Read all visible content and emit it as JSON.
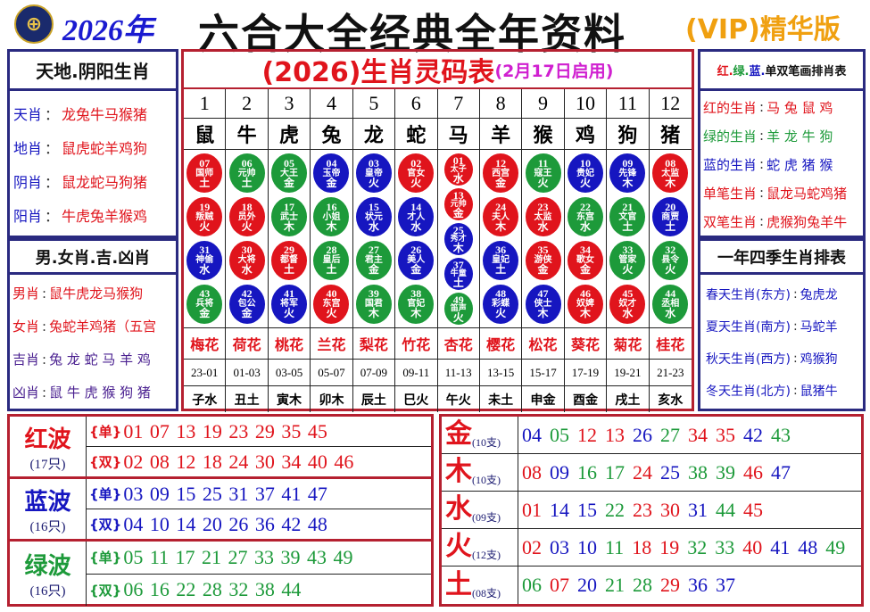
{
  "colors": {
    "r": "#e0141c",
    "g": "#1d9a3a",
    "b": "#1616c0"
  },
  "header": {
    "logo_icon": "lottery-emblem-icon",
    "year": "2026年",
    "title": "六合大全经典全年资料",
    "edition": "(VIP)精华版"
  },
  "left": {
    "box1_title": "天地.阴阳生肖",
    "box1_items": [
      {
        "k": "天肖",
        "v": "龙兔牛马猴猪"
      },
      {
        "k": "地肖",
        "v": "鼠虎蛇羊鸡狗"
      },
      {
        "k": "阴肖",
        "v": "鼠龙蛇马狗猪"
      },
      {
        "k": "阳肖",
        "v": "牛虎兔羊猴鸡"
      }
    ],
    "box2_title": "男.女肖.吉.凶肖",
    "box2_items": [
      {
        "k": "男肖",
        "v": "鼠牛虎龙马猴狗",
        "c": "r"
      },
      {
        "k": "女肖",
        "v": "兔蛇羊鸡猪（五宫",
        "c": "r"
      },
      {
        "k": "吉肖",
        "v": "兔 龙 蛇 马 羊 鸡",
        "c": "p"
      },
      {
        "k": "凶肖",
        "v": "鼠 牛 虎 猴 狗 猪",
        "c": "p"
      }
    ]
  },
  "center": {
    "title": "(2026)生肖灵码表",
    "subtitle": "(2月17日启用)",
    "numbers": [
      "1",
      "2",
      "3",
      "4",
      "5",
      "6",
      "7",
      "8",
      "9",
      "10",
      "11",
      "12"
    ],
    "zodiacs": [
      "鼠",
      "牛",
      "虎",
      "兔",
      "龙",
      "蛇",
      "马",
      "羊",
      "猴",
      "鸡",
      "狗",
      "猪"
    ],
    "balls": [
      [
        [
          "07",
          "国师",
          "土",
          "r"
        ],
        [
          "19",
          "叛贼",
          "火",
          "r"
        ],
        [
          "31",
          "神偷",
          "水",
          "b"
        ],
        [
          "43",
          "兵将",
          "金",
          "g"
        ]
      ],
      [
        [
          "06",
          "元帅",
          "土",
          "g"
        ],
        [
          "18",
          "员外",
          "火",
          "r"
        ],
        [
          "30",
          "大将",
          "水",
          "r"
        ],
        [
          "42",
          "包公",
          "金",
          "b"
        ]
      ],
      [
        [
          "05",
          "大王",
          "金",
          "g"
        ],
        [
          "17",
          "武士",
          "木",
          "g"
        ],
        [
          "29",
          "都督",
          "土",
          "r"
        ],
        [
          "41",
          "将军",
          "火",
          "b"
        ]
      ],
      [
        [
          "04",
          "玉帝",
          "金",
          "b"
        ],
        [
          "16",
          "小姐",
          "木",
          "g"
        ],
        [
          "28",
          "皇后",
          "土",
          "g"
        ],
        [
          "40",
          "东宫",
          "火",
          "r"
        ]
      ],
      [
        [
          "03",
          "皇帝",
          "火",
          "b"
        ],
        [
          "15",
          "状元",
          "水",
          "b"
        ],
        [
          "27",
          "君主",
          "金",
          "g"
        ],
        [
          "39",
          "国君",
          "木",
          "g"
        ]
      ],
      [
        [
          "02",
          "官女",
          "火",
          "r"
        ],
        [
          "14",
          "才人",
          "水",
          "b"
        ],
        [
          "26",
          "美人",
          "金",
          "b"
        ],
        [
          "38",
          "官妃",
          "木",
          "g"
        ]
      ],
      [
        [
          "01",
          "太子",
          "水",
          "r"
        ],
        [
          "13",
          "元帅",
          "金",
          "r"
        ],
        [
          "25",
          "秀才",
          "木",
          "b"
        ],
        [
          "37",
          "牛童",
          "土",
          "b"
        ],
        [
          "49",
          "笛声",
          "火",
          "g"
        ]
      ],
      [
        [
          "12",
          "西宫",
          "金",
          "r"
        ],
        [
          "24",
          "夫人",
          "木",
          "r"
        ],
        [
          "36",
          "皇妃",
          "土",
          "b"
        ],
        [
          "48",
          "彩蝶",
          "火",
          "b"
        ]
      ],
      [
        [
          "11",
          "寇王",
          "火",
          "g"
        ],
        [
          "23",
          "太监",
          "水",
          "r"
        ],
        [
          "35",
          "游侠",
          "金",
          "r"
        ],
        [
          "47",
          "侠士",
          "木",
          "b"
        ]
      ],
      [
        [
          "10",
          "贵妃",
          "火",
          "b"
        ],
        [
          "22",
          "东宫",
          "水",
          "g"
        ],
        [
          "34",
          "歌女",
          "金",
          "r"
        ],
        [
          "46",
          "奴婢",
          "木",
          "r"
        ]
      ],
      [
        [
          "09",
          "先锋",
          "木",
          "b"
        ],
        [
          "21",
          "文官",
          "土",
          "g"
        ],
        [
          "33",
          "管家",
          "火",
          "g"
        ],
        [
          "45",
          "奴才",
          "水",
          "r"
        ]
      ],
      [
        [
          "08",
          "太监",
          "木",
          "r"
        ],
        [
          "20",
          "商贾",
          "土",
          "b"
        ],
        [
          "32",
          "县令",
          "火",
          "g"
        ],
        [
          "44",
          "丞相",
          "水",
          "g"
        ]
      ]
    ],
    "flowers": [
      "梅花",
      "荷花",
      "桃花",
      "兰花",
      "梨花",
      "竹花",
      "杏花",
      "樱花",
      "松花",
      "葵花",
      "菊花",
      "桂花"
    ],
    "hours": [
      "23-01",
      "01-03",
      "03-05",
      "05-07",
      "07-09",
      "09-11",
      "11-13",
      "13-15",
      "15-17",
      "17-19",
      "19-21",
      "21-23"
    ],
    "branches": [
      "子水",
      "丑土",
      "寅木",
      "卯木",
      "辰土",
      "巳火",
      "午火",
      "未土",
      "申金",
      "酉金",
      "戌土",
      "亥水"
    ]
  },
  "right": {
    "box1_title_parts": [
      {
        "t": "红.",
        "c": "r"
      },
      {
        "t": "绿.",
        "c": "g"
      },
      {
        "t": "蓝.",
        "c": "b"
      },
      {
        "t": "单双笔画排肖表",
        "c": "k"
      }
    ],
    "box1_items": [
      {
        "k": "红的生肖",
        "v": "马 兔 鼠 鸡",
        "c": "r"
      },
      {
        "k": "绿的生肖",
        "v": "羊 龙 牛 狗",
        "c": "g"
      },
      {
        "k": "蓝的生肖",
        "v": "蛇 虎 猪 猴",
        "c": "b"
      },
      {
        "k": "单笔生肖",
        "v": "鼠龙马蛇鸡猪",
        "c": "r"
      },
      {
        "k": "双笔生肖",
        "v": "虎猴狗兔羊牛",
        "c": "r"
      }
    ],
    "box2_title": "一年四季生肖排表",
    "box2_items": [
      {
        "k": "春天生肖(东方)",
        "v": "兔虎龙"
      },
      {
        "k": "夏天生肖(南方)",
        "v": "马蛇羊"
      },
      {
        "k": "秋天生肖(西方)",
        "v": "鸡猴狗"
      },
      {
        "k": "冬天生肖(北方)",
        "v": "鼠猪牛"
      }
    ]
  },
  "waves": [
    {
      "name": "红波",
      "count": "(17只)",
      "c": "r",
      "rows": [
        {
          "tag": "{单}",
          "nums": "01 07 13 19 23 29 35 45"
        },
        {
          "tag": "{双}",
          "nums": "02 08 12 18 24 30 34 40 46"
        }
      ]
    },
    {
      "name": "蓝波",
      "count": "(16只)",
      "c": "b",
      "rows": [
        {
          "tag": "{单}",
          "nums": "03 09 15 25 31 37 41 47"
        },
        {
          "tag": "{双}",
          "nums": "04 10 14 20 26 36 42 48"
        }
      ]
    },
    {
      "name": "绿波",
      "count": "(16只)",
      "c": "g",
      "rows": [
        {
          "tag": "{单}",
          "nums": "05 11 17 21 27 33 39 43 49"
        },
        {
          "tag": "{双}",
          "nums": "06 16 22 28 32 38 44"
        }
      ]
    }
  ],
  "elements": [
    {
      "name": "金",
      "count": "(10支)",
      "nums": [
        [
          "04",
          "b"
        ],
        [
          "05",
          "g"
        ],
        [
          "12",
          "r"
        ],
        [
          "13",
          "r"
        ],
        [
          "26",
          "b"
        ],
        [
          "27",
          "g"
        ],
        [
          "34",
          "r"
        ],
        [
          "35",
          "r"
        ],
        [
          "42",
          "b"
        ],
        [
          "43",
          "g"
        ]
      ]
    },
    {
      "name": "木",
      "count": "(10支)",
      "nums": [
        [
          "08",
          "r"
        ],
        [
          "09",
          "b"
        ],
        [
          "16",
          "g"
        ],
        [
          "17",
          "g"
        ],
        [
          "24",
          "r"
        ],
        [
          "25",
          "b"
        ],
        [
          "38",
          "g"
        ],
        [
          "39",
          "g"
        ],
        [
          "46",
          "r"
        ],
        [
          "47",
          "b"
        ]
      ]
    },
    {
      "name": "水",
      "count": "(09支)",
      "nums": [
        [
          "01",
          "r"
        ],
        [
          "14",
          "b"
        ],
        [
          "15",
          "b"
        ],
        [
          "22",
          "g"
        ],
        [
          "23",
          "r"
        ],
        [
          "30",
          "r"
        ],
        [
          "31",
          "b"
        ],
        [
          "44",
          "g"
        ],
        [
          "45",
          "r"
        ]
      ]
    },
    {
      "name": "火",
      "count": "(12支)",
      "nums": [
        [
          "02",
          "r"
        ],
        [
          "03",
          "b"
        ],
        [
          "10",
          "b"
        ],
        [
          "11",
          "g"
        ],
        [
          "18",
          "r"
        ],
        [
          "19",
          "r"
        ],
        [
          "32",
          "g"
        ],
        [
          "33",
          "g"
        ],
        [
          "40",
          "r"
        ],
        [
          "41",
          "b"
        ],
        [
          "48",
          "b"
        ],
        [
          "49",
          "g"
        ]
      ]
    },
    {
      "name": "土",
      "count": "(08支)",
      "nums": [
        [
          "06",
          "g"
        ],
        [
          "07",
          "r"
        ],
        [
          "20",
          "b"
        ],
        [
          "21",
          "g"
        ],
        [
          "28",
          "g"
        ],
        [
          "29",
          "r"
        ],
        [
          "36",
          "b"
        ],
        [
          "37",
          "b"
        ]
      ]
    }
  ]
}
